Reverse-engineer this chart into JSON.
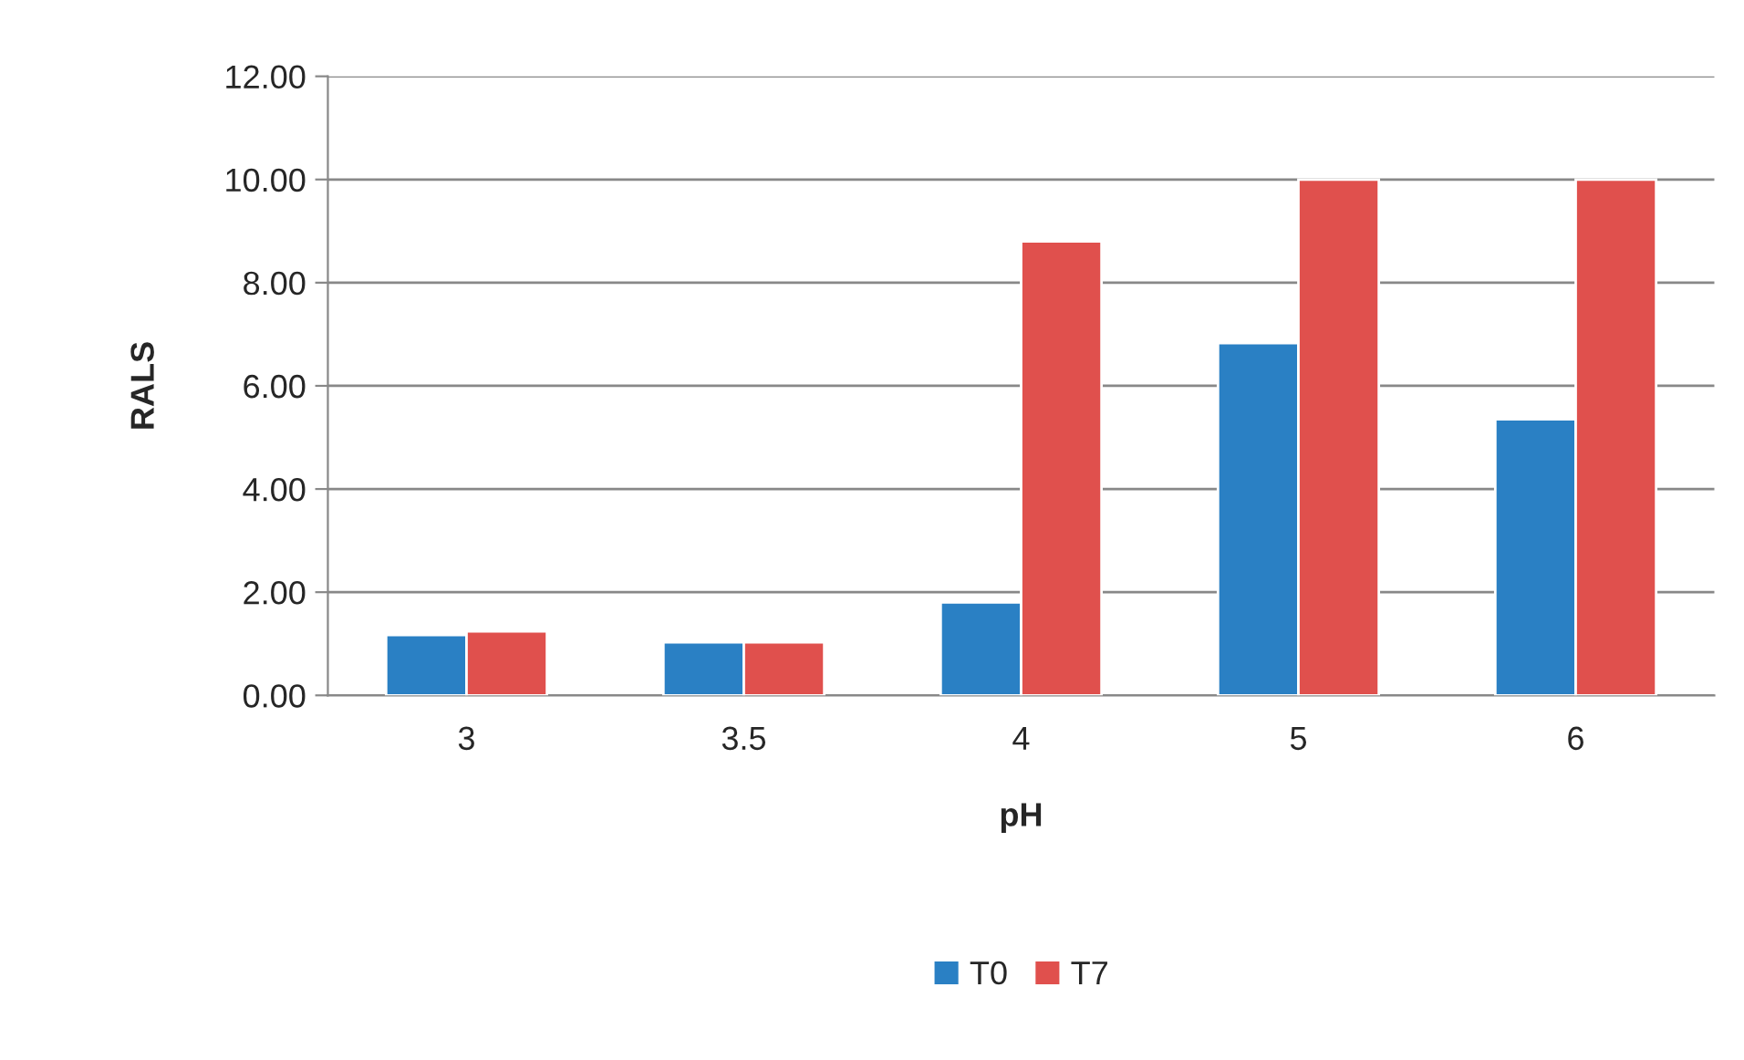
{
  "chart_data": {
    "type": "bar",
    "xlabel": "pH",
    "ylabel": "RALS",
    "categories": [
      "3",
      "3.5",
      "4",
      "5",
      "6"
    ],
    "series": [
      {
        "name": "T0",
        "color": "#2a80c4",
        "values": [
          1.17,
          1.03,
          1.8,
          6.83,
          5.35
        ]
      },
      {
        "name": "T7",
        "color": "#e0504d",
        "values": [
          1.24,
          1.03,
          8.8,
          10.0,
          10.0
        ]
      }
    ],
    "ylim": [
      0,
      12
    ],
    "yticks": [
      {
        "value": 0,
        "label": "0.00"
      },
      {
        "value": 2,
        "label": "2.00"
      },
      {
        "value": 4,
        "label": "4.00"
      },
      {
        "value": 6,
        "label": "6.00"
      },
      {
        "value": 8,
        "label": "8.00"
      },
      {
        "value": 10,
        "label": "10.00"
      },
      {
        "value": 12,
        "label": "12.00"
      }
    ],
    "grid": "y",
    "legend": "bottom"
  }
}
